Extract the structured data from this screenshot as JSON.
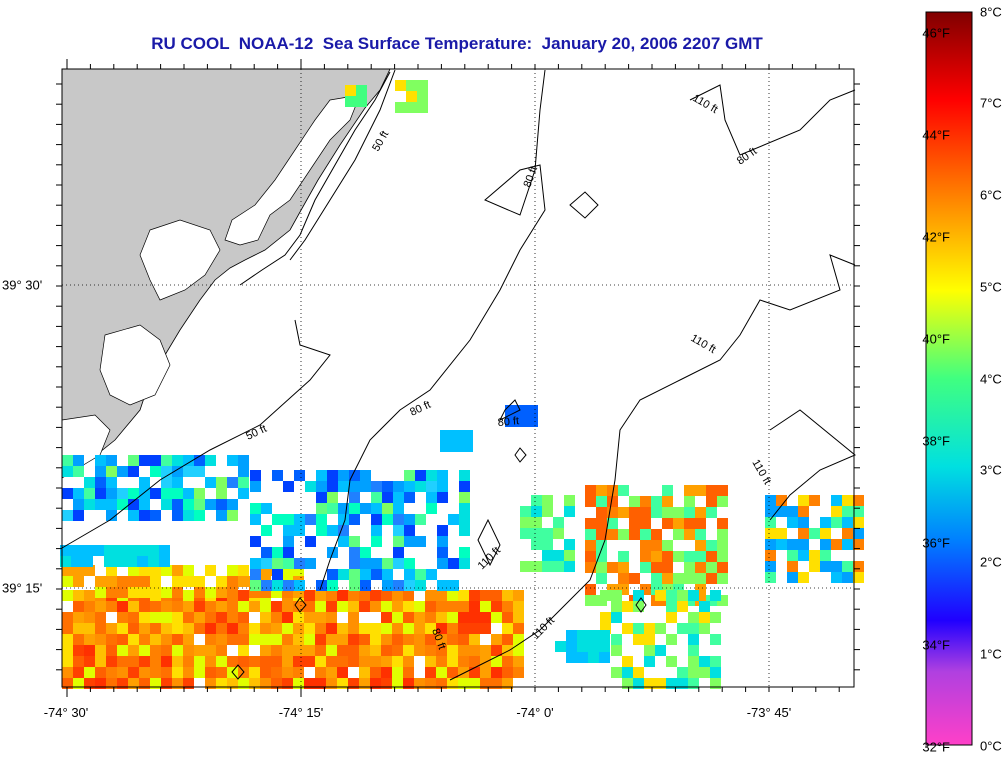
{
  "title": "RU COOL  NOAA-12  Sea Surface Temperature:  January 20, 2006 2207 GMT",
  "map": {
    "longitude_labels": [
      "-74° 30'",
      "-74° 15'",
      "-74° 0'",
      "-73° 45'"
    ],
    "latitude_labels": [
      "39° 30'",
      "39° 15'"
    ],
    "contour_labels": [
      "50 ft",
      "50 ft",
      "80 ft",
      "80 ft",
      "80 ft",
      "80 ft",
      "80 ft",
      "110 ft",
      "110 ft",
      "110 ft",
      "110 ft",
      "110 ft"
    ],
    "land_color": "#c8c8c8",
    "ocean_color": "#ffffff"
  },
  "colorbar": {
    "fahrenheit_labels": [
      "46°F",
      "44°F",
      "42°F",
      "40°F",
      "38°F",
      "36°F",
      "34°F",
      "32°F"
    ],
    "celsius_labels": [
      "8°C",
      "7°C",
      "6°C",
      "5°C",
      "4°C",
      "3°C",
      "2°C",
      "1°C",
      "0°C"
    ],
    "range_celsius": [
      0,
      8
    ],
    "colors": [
      "#ff40c8",
      "#8040e0",
      "#0000ff",
      "#00a0ff",
      "#00e0e0",
      "#40ff80",
      "#ffff00",
      "#ff8000",
      "#ff0000",
      "#800000"
    ]
  }
}
